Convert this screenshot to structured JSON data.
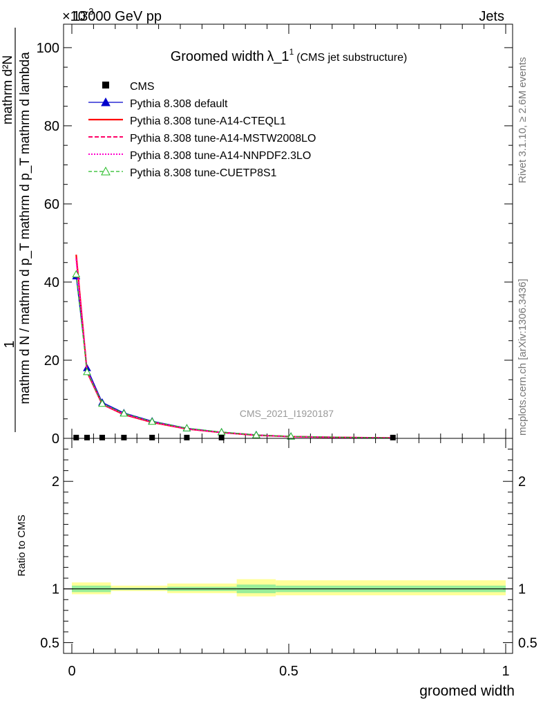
{
  "header": {
    "left": "13000 GeV pp",
    "right": "Jets",
    "exponent": "×10",
    "exponent_power": "-3"
  },
  "side_labels": {
    "rivet": "Rivet 3.1.10, ≥ 2.6M events",
    "mcplots": "mcplots.cern.ch [arXiv:1306.3436]"
  },
  "colors": {
    "cms": "#000000",
    "default": "#0000cc",
    "cteql1": "#ff0000",
    "mstw": "#ff0066",
    "nnpdf": "#ff00cc",
    "cuetp8s1": "#22bb22",
    "band_outer": "#ffff99",
    "band_inner": "#99ee99"
  },
  "chart_data": [
    {
      "type": "line",
      "title": "Groomed width λ_1^1 (CMS jet substructure)",
      "title_main": "Groomed width",
      "title_lambda": "λ_1",
      "title_sup": "1",
      "title_sub": "(CMS jet substructure)",
      "watermark": "CMS_2021_I1920187",
      "xlabel": "groomed width",
      "ylabel_top": "1",
      "ylabel_num": "mathrm d²N",
      "ylabel_den": "mathrm d N / mathrm d p_T mathrm d p_T mathrm d lambda",
      "xlim": [
        0,
        1
      ],
      "ylim": [
        0,
        106
      ],
      "y_scale_note": "×10^-3",
      "y_ticks": [
        0,
        20,
        40,
        60,
        80,
        100
      ],
      "x": [
        0.01,
        0.035,
        0.07,
        0.12,
        0.185,
        0.265,
        0.345,
        0.425,
        0.505,
        0.585,
        0.665,
        0.74
      ],
      "cms_points": {
        "x": [
          0.01,
          0.035,
          0.07,
          0.12,
          0.185,
          0.265,
          0.345,
          0.74
        ],
        "y": [
          0.2,
          0.2,
          0.2,
          0.2,
          0.2,
          0.2,
          0.2,
          0.2
        ]
      },
      "series": [
        {
          "name": "CMS",
          "key": "cms",
          "marker": "square"
        },
        {
          "name": "Pythia 8.308 default",
          "key": "default",
          "y": [
            41.5,
            18.0,
            9.2,
            6.5,
            4.4,
            2.6,
            1.6,
            0.9,
            0.5,
            0.35,
            0.2,
            0.1
          ]
        },
        {
          "name": "Pythia 8.308 tune-A14-CTEQL1",
          "key": "cteql1",
          "y": [
            47.0,
            17.0,
            8.7,
            6.1,
            4.1,
            2.4,
            1.5,
            0.8,
            0.45,
            0.3,
            0.18,
            0.1
          ]
        },
        {
          "name": "Pythia 8.308 tune-A14-MSTW2008LO",
          "key": "mstw",
          "y": [
            46.3,
            17.2,
            8.8,
            6.2,
            4.2,
            2.45,
            1.5,
            0.8,
            0.45,
            0.3,
            0.18,
            0.1
          ]
        },
        {
          "name": "Pythia 8.308 tune-A14-NNPDF2.3LO",
          "key": "nnpdf",
          "y": [
            45.8,
            17.1,
            8.8,
            6.2,
            4.2,
            2.45,
            1.5,
            0.8,
            0.45,
            0.3,
            0.18,
            0.1
          ]
        },
        {
          "name": "Pythia 8.308 tune-CUETP8S1",
          "key": "cuetp8s1",
          "y": [
            42.0,
            17.0,
            8.9,
            6.4,
            4.3,
            2.6,
            1.6,
            0.85,
            0.5,
            0.35,
            0.2,
            0.1
          ]
        }
      ]
    },
    {
      "type": "area",
      "ylabel": "Ratio to CMS",
      "xlabel": "groomed width",
      "xlim": [
        0,
        1
      ],
      "ylim": [
        0.4,
        2.4
      ],
      "y_ticks": [
        0.5,
        1,
        2
      ],
      "x_ticks": [
        0,
        0.5,
        1
      ],
      "x_tick_labels": [
        "0",
        "0.5",
        "1"
      ],
      "y_tick_labels": [
        "0.5",
        "1",
        "2"
      ],
      "reference": 1,
      "bins": [
        {
          "x0": 0.0,
          "x1": 0.09,
          "outer": [
            0.95,
            1.06
          ],
          "inner": [
            0.97,
            1.03
          ]
        },
        {
          "x0": 0.09,
          "x1": 0.22,
          "outer": [
            0.98,
            1.03
          ],
          "inner": [
            0.99,
            1.01
          ]
        },
        {
          "x0": 0.22,
          "x1": 0.38,
          "outer": [
            0.96,
            1.05
          ],
          "inner": [
            0.98,
            1.02
          ]
        },
        {
          "x0": 0.38,
          "x1": 0.47,
          "outer": [
            0.93,
            1.09
          ],
          "inner": [
            0.96,
            1.04
          ]
        },
        {
          "x0": 0.47,
          "x1": 1.0,
          "outer": [
            0.94,
            1.08
          ],
          "inner": [
            0.97,
            1.03
          ]
        }
      ]
    }
  ]
}
